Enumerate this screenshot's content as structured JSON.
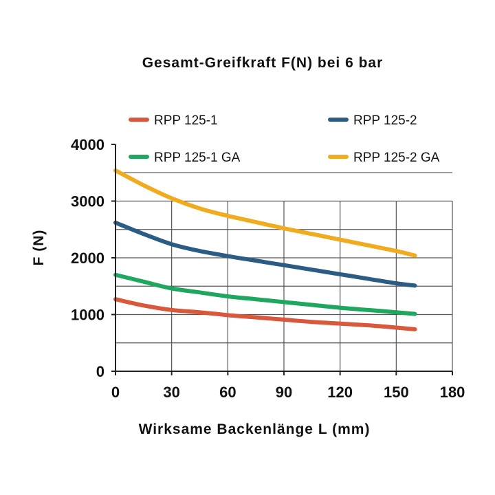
{
  "chart_data": {
    "type": "line",
    "title": "Gesamt-Greifkraft F(N) bei 6 bar",
    "xlabel": "Wirksame Backenlänge L (mm)",
    "ylabel": "F (N)",
    "xlim": [
      0,
      180
    ],
    "ylim": [
      0,
      4000
    ],
    "x_ticks": [
      "0",
      "30",
      "60",
      "90",
      "120",
      "150",
      "180"
    ],
    "y_ticks": [
      "0",
      "1000",
      "2000",
      "3000",
      "4000"
    ],
    "grid": true,
    "legend_placement": "top",
    "series": [
      {
        "name": "RPP 125-1",
        "color": "#d9573b",
        "x": [
          0,
          15,
          30,
          45,
          60,
          75,
          90,
          105,
          120,
          135,
          150,
          160
        ],
        "y": [
          1270,
          1160,
          1080,
          1040,
          990,
          950,
          910,
          870,
          840,
          810,
          770,
          740
        ]
      },
      {
        "name": "RPP 125-2",
        "color": "#2a5c84",
        "x": [
          0,
          15,
          30,
          45,
          60,
          75,
          90,
          105,
          120,
          135,
          150,
          160
        ],
        "y": [
          2620,
          2420,
          2240,
          2120,
          2030,
          1950,
          1870,
          1790,
          1710,
          1630,
          1550,
          1510
        ]
      },
      {
        "name": "RPP 125-1 GA",
        "color": "#1fa760",
        "x": [
          0,
          15,
          30,
          45,
          60,
          75,
          90,
          105,
          120,
          135,
          150,
          160
        ],
        "y": [
          1700,
          1580,
          1460,
          1390,
          1320,
          1270,
          1220,
          1170,
          1120,
          1080,
          1040,
          1010
        ]
      },
      {
        "name": "RPP 125-2 GA",
        "color": "#f0ab1e",
        "x": [
          0,
          15,
          30,
          45,
          60,
          75,
          90,
          105,
          120,
          135,
          150,
          160
        ],
        "y": [
          3540,
          3280,
          3050,
          2870,
          2740,
          2630,
          2520,
          2420,
          2320,
          2220,
          2120,
          2040
        ]
      }
    ]
  }
}
